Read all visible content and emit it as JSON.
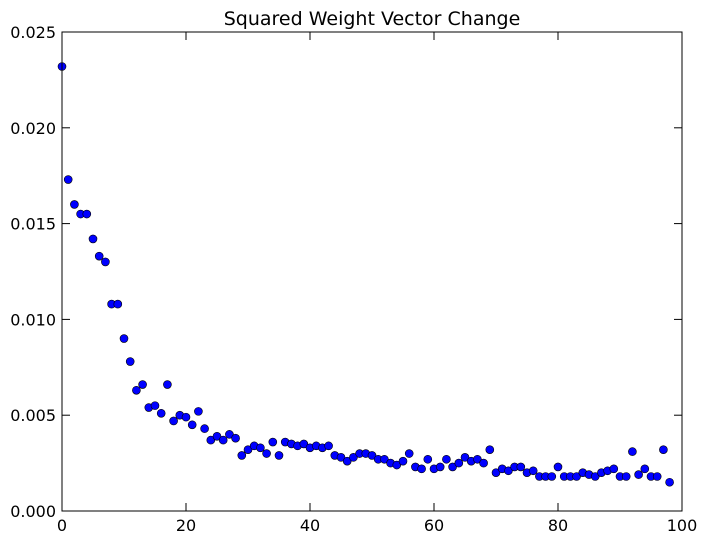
{
  "chart_data": {
    "type": "scatter",
    "title": "Squared Weight Vector Change",
    "xlabel": "",
    "ylabel": "",
    "xlim": [
      0,
      100
    ],
    "ylim": [
      0,
      0.025
    ],
    "xticks": [
      "0",
      "20",
      "40",
      "60",
      "80",
      "100"
    ],
    "yticks": [
      "0.000",
      "0.005",
      "0.010",
      "0.015",
      "0.020",
      "0.025"
    ],
    "grid": false,
    "marker_color": "#0000ff",
    "marker_edge_color": "#000000",
    "x": [
      0,
      1,
      2,
      3,
      4,
      5,
      6,
      7,
      8,
      9,
      10,
      11,
      12,
      13,
      14,
      15,
      16,
      17,
      18,
      19,
      20,
      21,
      22,
      23,
      24,
      25,
      26,
      27,
      28,
      29,
      30,
      31,
      32,
      33,
      34,
      35,
      36,
      37,
      38,
      39,
      40,
      41,
      42,
      43,
      44,
      45,
      46,
      47,
      48,
      49,
      50,
      51,
      52,
      53,
      54,
      55,
      56,
      57,
      58,
      59,
      60,
      61,
      62,
      63,
      64,
      65,
      66,
      67,
      68,
      69,
      70,
      71,
      72,
      73,
      74,
      75,
      76,
      77,
      78,
      79,
      80,
      81,
      82,
      83,
      84,
      85,
      86,
      87,
      88,
      89,
      90,
      91,
      92,
      93,
      94,
      95,
      96,
      97,
      98
    ],
    "y": [
      0.0232,
      0.0173,
      0.016,
      0.0155,
      0.0155,
      0.0142,
      0.0133,
      0.013,
      0.0108,
      0.0108,
      0.009,
      0.0078,
      0.0063,
      0.0066,
      0.0054,
      0.0055,
      0.0051,
      0.0066,
      0.0047,
      0.005,
      0.0049,
      0.0045,
      0.0052,
      0.0043,
      0.0037,
      0.0039,
      0.0037,
      0.004,
      0.0038,
      0.0029,
      0.0032,
      0.0034,
      0.0033,
      0.003,
      0.0036,
      0.0029,
      0.0036,
      0.0035,
      0.0034,
      0.0035,
      0.0033,
      0.0034,
      0.0033,
      0.0034,
      0.0029,
      0.0028,
      0.0026,
      0.0028,
      0.003,
      0.003,
      0.0029,
      0.0027,
      0.0027,
      0.0025,
      0.0024,
      0.0026,
      0.003,
      0.0023,
      0.0022,
      0.0027,
      0.0022,
      0.0023,
      0.0027,
      0.0023,
      0.0025,
      0.0028,
      0.0026,
      0.0027,
      0.0025,
      0.0032,
      0.002,
      0.0022,
      0.0021,
      0.0023,
      0.0023,
      0.002,
      0.0021,
      0.0018,
      0.0018,
      0.0018,
      0.0023,
      0.0018,
      0.0018,
      0.0018,
      0.002,
      0.0019,
      0.0018,
      0.002,
      0.0021,
      0.0022,
      0.0018,
      0.0018,
      0.0031,
      0.0019,
      0.0022,
      0.0018,
      0.0018,
      0.0032,
      0.0015
    ]
  }
}
